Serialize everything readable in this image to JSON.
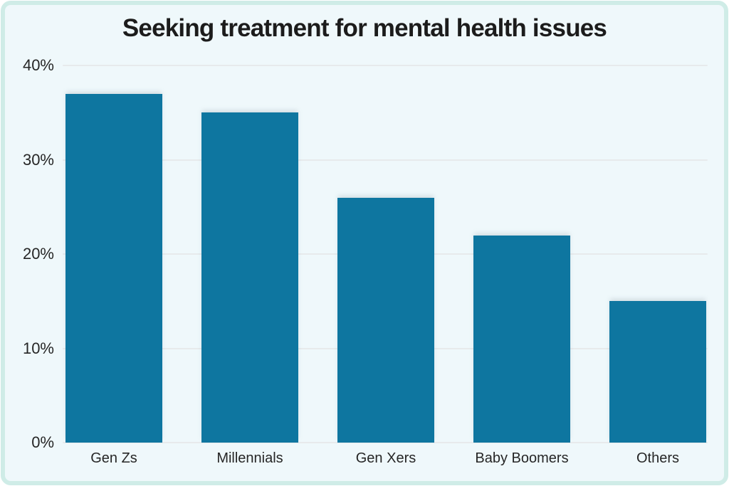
{
  "title": "Seeking treatment for mental health issues",
  "colors": {
    "bar": "#0e76a0",
    "card_background": "#eff8fb",
    "card_border": "#cfece7",
    "gridline": "#e7eaec",
    "title_text": "#1c1c1c",
    "tick_text": "#262626"
  },
  "chart_data": {
    "type": "bar",
    "title": "Seeking treatment for mental health issues",
    "categories": [
      "Gen Zs",
      "Millennials",
      "Gen Xers",
      "Baby Boomers",
      "Others"
    ],
    "values": [
      37,
      35,
      26,
      22,
      15
    ],
    "xlabel": "",
    "ylabel": "",
    "ylim": [
      0,
      40
    ],
    "yticks": [
      0,
      10,
      20,
      30,
      40
    ],
    "ytick_labels": [
      "0%",
      "10%",
      "20%",
      "30%",
      "40%"
    ],
    "grid": true,
    "legend": false,
    "bar_orientation": "vertical"
  }
}
